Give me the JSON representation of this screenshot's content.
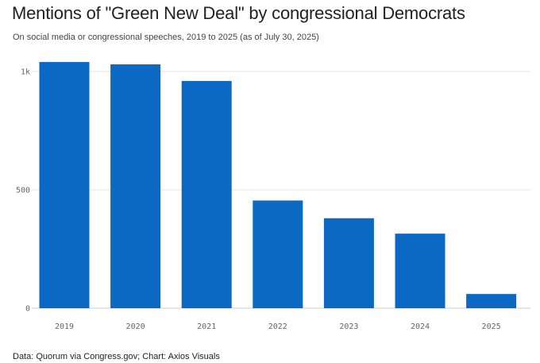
{
  "header": {
    "title": "Mentions of \"Green New Deal\" by congressional Democrats",
    "subtitle": "On social media or congressional speeches, 2019 to 2025 (as of July 30, 2025)"
  },
  "footer": {
    "source": "Data: Quorum via Congress.gov; Chart: Axios Visuals"
  },
  "colors": {
    "bar": "#0b69c4",
    "grid": "#e6e6e6",
    "axis": "#cccccc"
  },
  "chart_data": {
    "type": "bar",
    "title": "Mentions of \"Green New Deal\" by congressional Democrats",
    "subtitle": "On social media or congressional speeches, 2019 to 2025 (as of July 30, 2025)",
    "categories": [
      "2019",
      "2020",
      "2021",
      "2022",
      "2023",
      "2024",
      "2025"
    ],
    "values": [
      1040,
      1030,
      960,
      455,
      380,
      315,
      60
    ],
    "ylim": [
      0,
      1000
    ],
    "yticks": [
      0,
      500,
      1000
    ],
    "ytick_labels": [
      "0",
      "500",
      "1k"
    ],
    "xlabel": "",
    "ylabel": "",
    "grid": true,
    "legend": "none"
  }
}
